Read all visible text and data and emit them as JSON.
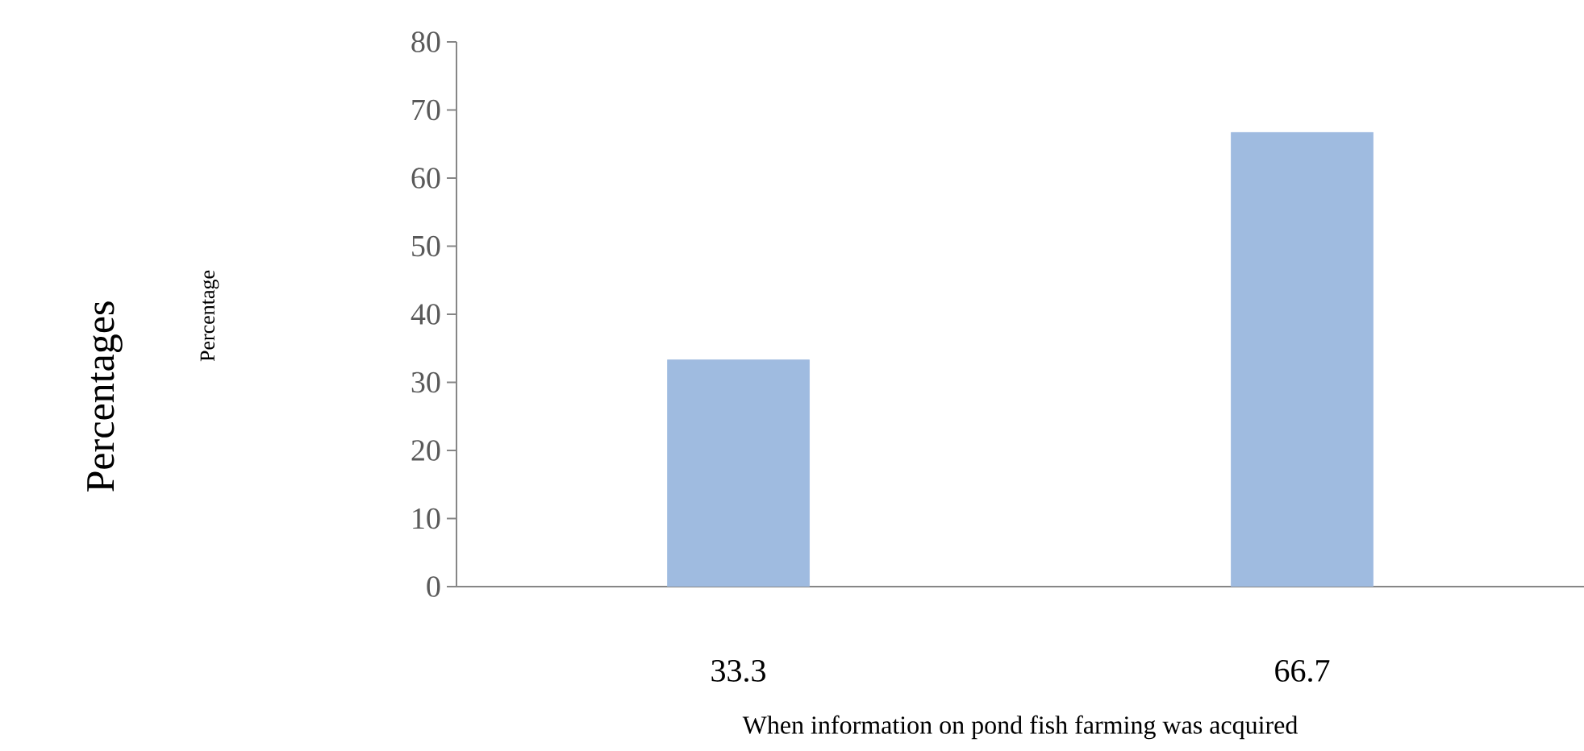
{
  "chart_data": {
    "type": "bar",
    "categories": [
      "33.3",
      "66.7"
    ],
    "values": [
      33.3,
      66.7
    ],
    "color": "#9fbbe0",
    "ylim": [
      0,
      80
    ],
    "yticks": [
      0,
      10,
      20,
      30,
      40,
      50,
      60,
      70,
      80
    ],
    "xlabel": "When information on pond fish farming was acquired",
    "annotations": [
      "Percentages",
      "Percentage"
    ],
    "grid": false
  }
}
